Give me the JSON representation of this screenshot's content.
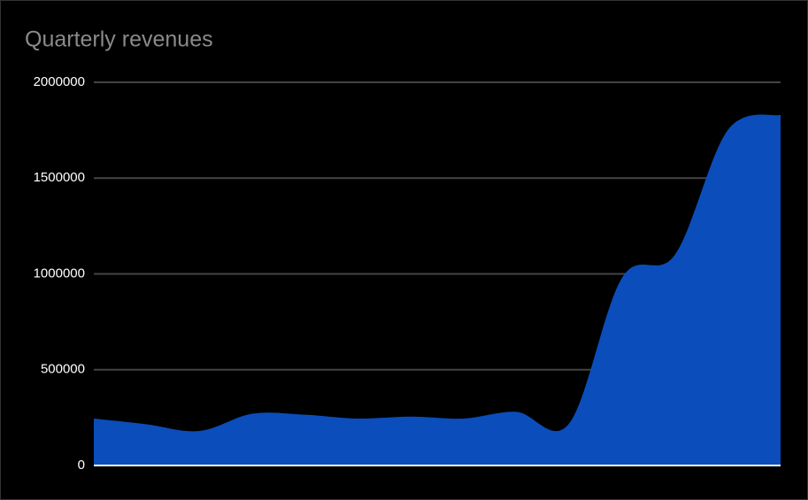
{
  "chart_data": {
    "type": "area",
    "title": "Quarterly revenues",
    "categories": [
      null,
      null,
      null,
      null,
      null,
      null,
      null,
      null,
      null,
      null,
      null,
      null,
      null,
      null
    ],
    "values": [
      245000,
      215000,
      180000,
      270000,
      265000,
      245000,
      255000,
      245000,
      280000,
      220000,
      980000,
      1100000,
      1750000,
      1830000
    ],
    "color": "#0b4dbb",
    "ylim": [
      0,
      2000000
    ],
    "yticks": [
      0,
      500000,
      1000000,
      1500000,
      2000000
    ],
    "grid": true
  }
}
